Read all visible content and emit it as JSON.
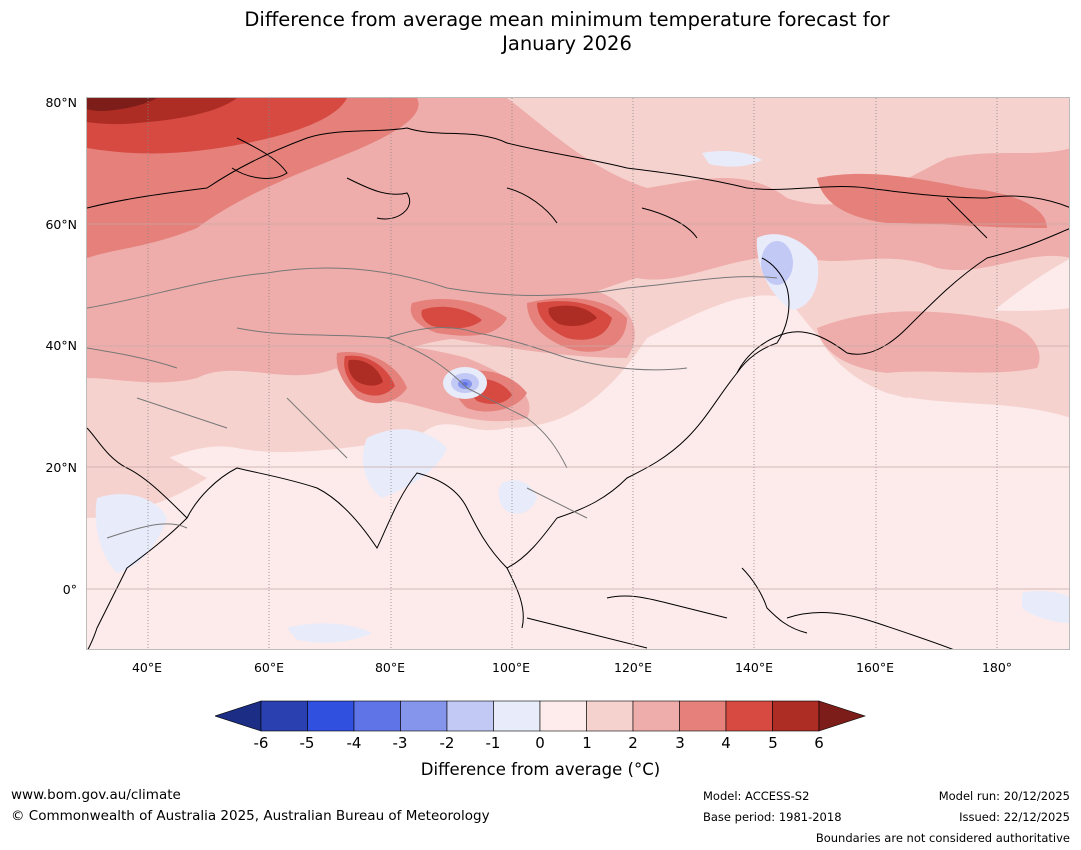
{
  "title": {
    "line1": "Difference from average mean minimum temperature forecast for",
    "line2": "January 2026"
  },
  "map": {
    "lat_labels": [
      "80°N",
      "60°N",
      "40°N",
      "20°N",
      "0°"
    ],
    "lon_labels": [
      "40°E",
      "60°E",
      "80°E",
      "100°E",
      "120°E",
      "140°E",
      "160°E",
      "180°"
    ]
  },
  "colorbar": {
    "ticks": [
      "-6",
      "-5",
      "-4",
      "-3",
      "-2",
      "-1",
      "0",
      "1",
      "2",
      "3",
      "4",
      "5",
      "6"
    ],
    "colors": [
      "#1b2d84",
      "#2a3fb0",
      "#3050e0",
      "#5f74e6",
      "#8595ec",
      "#c2c9f5",
      "#e8ebfa",
      "#fdeceb",
      "#f6d2cf",
      "#eeadaa",
      "#e5807b",
      "#d64a42",
      "#ad2c24",
      "#7d1d19"
    ],
    "label": "Difference from average (°C)"
  },
  "footer": {
    "site": "www.bom.gov.au/climate",
    "copyright": "© Commonwealth of Australia 2025, Australian Bureau of Meteorology",
    "model": "Model: ACCESS-S2",
    "base_period": "Base period: 1981-2018",
    "model_run": "Model run: 20/12/2025",
    "issued": "Issued: 22/12/2025",
    "boundaries": "Boundaries are not considered authoritative"
  }
}
